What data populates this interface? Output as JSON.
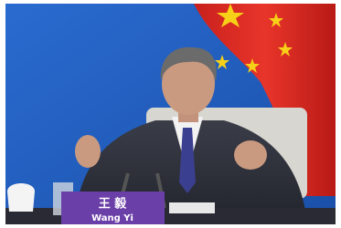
{
  "nameplate": {
    "name_zh": "王 毅",
    "name_en": "Wang Yi"
  }
}
